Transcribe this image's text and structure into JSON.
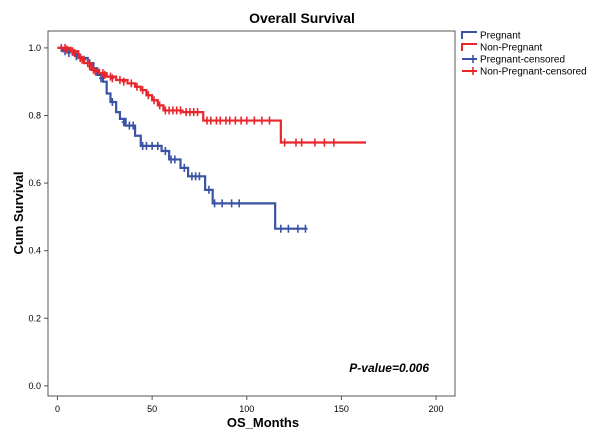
{
  "chart_data": {
    "type": "line",
    "title": "Overall Survival",
    "xlabel": "OS_Months",
    "ylabel": "Cum Survival",
    "xlim": [
      -5,
      210
    ],
    "ylim": [
      -0.03,
      1.05
    ],
    "x_ticks": [
      0,
      50,
      100,
      150,
      200
    ],
    "y_ticks": [
      0.0,
      0.2,
      0.4,
      0.6,
      0.8,
      1.0
    ],
    "x_tick_labels": [
      "0",
      "50",
      "100",
      "150",
      "200"
    ],
    "y_tick_labels": [
      "0.0",
      "0.2",
      "0.4",
      "0.6",
      "0.8",
      "1.0"
    ],
    "grid": false,
    "legend_position": "right",
    "legend": [
      "Pregnant",
      "Non-Pregnant",
      "Pregnant-censored",
      "Non-Pregnant-censored"
    ],
    "annotation": "P-value=0.006",
    "series": [
      {
        "name": "Pregnant",
        "color": "#3a53a4",
        "steps": [
          [
            0,
            1.0
          ],
          [
            3,
            0.99
          ],
          [
            8,
            0.98
          ],
          [
            12,
            0.97
          ],
          [
            16,
            0.955
          ],
          [
            19,
            0.94
          ],
          [
            21,
            0.92
          ],
          [
            24,
            0.9
          ],
          [
            26,
            0.865
          ],
          [
            28,
            0.84
          ],
          [
            31,
            0.81
          ],
          [
            33,
            0.79
          ],
          [
            36,
            0.77
          ],
          [
            41,
            0.74
          ],
          [
            44,
            0.71
          ],
          [
            55,
            0.695
          ],
          [
            59,
            0.67
          ],
          [
            65,
            0.645
          ],
          [
            69,
            0.62
          ],
          [
            78,
            0.58
          ],
          [
            82,
            0.54
          ],
          [
            115,
            0.465
          ],
          [
            132,
            0.465
          ]
        ],
        "censored": [
          [
            4,
            0.99
          ],
          [
            6,
            0.985
          ],
          [
            10,
            0.975
          ],
          [
            14,
            0.965
          ],
          [
            17,
            0.955
          ],
          [
            23,
            0.91
          ],
          [
            29,
            0.84
          ],
          [
            35,
            0.78
          ],
          [
            38,
            0.77
          ],
          [
            40,
            0.77
          ],
          [
            45,
            0.71
          ],
          [
            47,
            0.71
          ],
          [
            50,
            0.71
          ],
          [
            53,
            0.71
          ],
          [
            57,
            0.695
          ],
          [
            60,
            0.67
          ],
          [
            62,
            0.67
          ],
          [
            67,
            0.645
          ],
          [
            71,
            0.62
          ],
          [
            73,
            0.62
          ],
          [
            75,
            0.62
          ],
          [
            80,
            0.58
          ],
          [
            83,
            0.54
          ],
          [
            87,
            0.54
          ],
          [
            92,
            0.54
          ],
          [
            96,
            0.54
          ],
          [
            118,
            0.465
          ],
          [
            122,
            0.465
          ],
          [
            127,
            0.465
          ],
          [
            131,
            0.465
          ]
        ]
      },
      {
        "name": "Non-Pregnant",
        "color": "#e8262b",
        "steps": [
          [
            0,
            1.0
          ],
          [
            7,
            0.99
          ],
          [
            11,
            0.97
          ],
          [
            14,
            0.955
          ],
          [
            18,
            0.935
          ],
          [
            22,
            0.925
          ],
          [
            26,
            0.915
          ],
          [
            31,
            0.905
          ],
          [
            37,
            0.895
          ],
          [
            41,
            0.885
          ],
          [
            44,
            0.875
          ],
          [
            47,
            0.86
          ],
          [
            50,
            0.845
          ],
          [
            53,
            0.83
          ],
          [
            56,
            0.815
          ],
          [
            66,
            0.81
          ],
          [
            77,
            0.785
          ],
          [
            118,
            0.72
          ],
          [
            163,
            0.72
          ]
        ],
        "censored": [
          [
            2,
            1.0
          ],
          [
            4,
            1.0
          ],
          [
            5,
            0.995
          ],
          [
            8,
            0.99
          ],
          [
            9,
            0.985
          ],
          [
            12,
            0.97
          ],
          [
            13,
            0.965
          ],
          [
            16,
            0.955
          ],
          [
            17,
            0.945
          ],
          [
            19,
            0.935
          ],
          [
            20,
            0.93
          ],
          [
            24,
            0.925
          ],
          [
            25,
            0.92
          ],
          [
            28,
            0.915
          ],
          [
            29,
            0.91
          ],
          [
            33,
            0.905
          ],
          [
            35,
            0.9
          ],
          [
            39,
            0.895
          ],
          [
            42,
            0.885
          ],
          [
            45,
            0.875
          ],
          [
            48,
            0.86
          ],
          [
            51,
            0.845
          ],
          [
            54,
            0.83
          ],
          [
            57,
            0.815
          ],
          [
            59,
            0.815
          ],
          [
            61,
            0.815
          ],
          [
            63,
            0.815
          ],
          [
            65,
            0.815
          ],
          [
            68,
            0.81
          ],
          [
            70,
            0.81
          ],
          [
            72,
            0.81
          ],
          [
            74,
            0.81
          ],
          [
            79,
            0.785
          ],
          [
            81,
            0.785
          ],
          [
            84,
            0.785
          ],
          [
            86,
            0.785
          ],
          [
            89,
            0.785
          ],
          [
            91,
            0.785
          ],
          [
            94,
            0.785
          ],
          [
            97,
            0.785
          ],
          [
            100,
            0.785
          ],
          [
            104,
            0.785
          ],
          [
            108,
            0.785
          ],
          [
            112,
            0.785
          ],
          [
            120,
            0.72
          ],
          [
            126,
            0.72
          ],
          [
            129,
            0.72
          ],
          [
            136,
            0.72
          ],
          [
            141,
            0.72
          ],
          [
            146,
            0.72
          ]
        ]
      }
    ]
  }
}
